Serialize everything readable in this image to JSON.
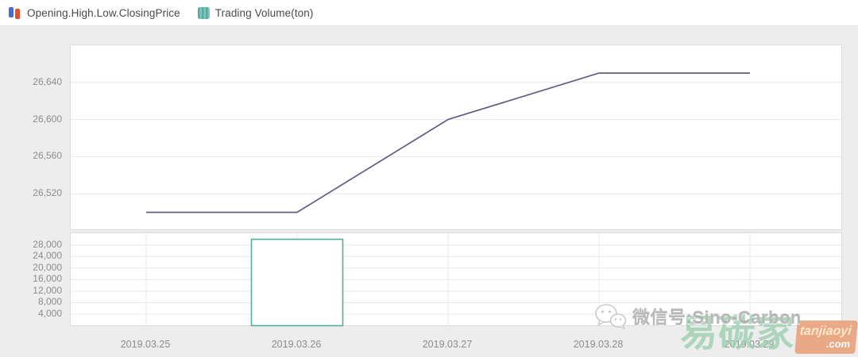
{
  "legend": {
    "price": {
      "label": "Opening.High.Low.ClosingPrice"
    },
    "volume": {
      "label": "Trading Volume(ton)"
    }
  },
  "chart_data": [
    {
      "type": "line",
      "title": "Opening.High.Low.ClosingPrice",
      "x": [
        "2019.03.25",
        "2019.03.26",
        "2019.03.27",
        "2019.03.28",
        "2019.03.29"
      ],
      "series": [
        {
          "name": "ClosingPrice",
          "values": [
            26500,
            26500,
            26600,
            26650,
            26650
          ]
        }
      ],
      "yticks": [
        26520,
        26560,
        26600,
        26640
      ],
      "ylim": [
        26480,
        26680
      ],
      "grid": "horizontal",
      "legend_position": "top-left"
    },
    {
      "type": "bar",
      "title": "Trading Volume(ton)",
      "x": [
        "2019.03.25",
        "2019.03.26",
        "2019.03.27",
        "2019.03.28",
        "2019.03.29"
      ],
      "series": [
        {
          "name": "Trading Volume(ton)",
          "values": [
            null,
            30000,
            null,
            null,
            null
          ]
        }
      ],
      "yticks": [
        4000,
        8000,
        12000,
        16000,
        20000,
        24000,
        28000
      ],
      "ylim": [
        0,
        32100
      ],
      "grid": "both",
      "bar_style": "hollow"
    }
  ],
  "watermark": {
    "wechat_text": "微信号:Sino-Carbon",
    "stamp_text": "易碳家",
    "stamp_site": "tanjiaoyi",
    "stamp_tld": ".com"
  },
  "colors": {
    "price_line": "#5f5e85",
    "volume": "#55ab9f",
    "volume_light": "#82c5bb",
    "legend_blue": "#4a6bd4",
    "legend_red": "#e55030",
    "legend_text": "#4a4a4a",
    "axis_text": "#8c8c8c",
    "grid_line": "#e8e8e8",
    "plot_border": "#dcdcdc",
    "panel_bg": "#ededed",
    "stamp_green": "#9ed0b2",
    "stamp_orange": "#e9a078"
  }
}
